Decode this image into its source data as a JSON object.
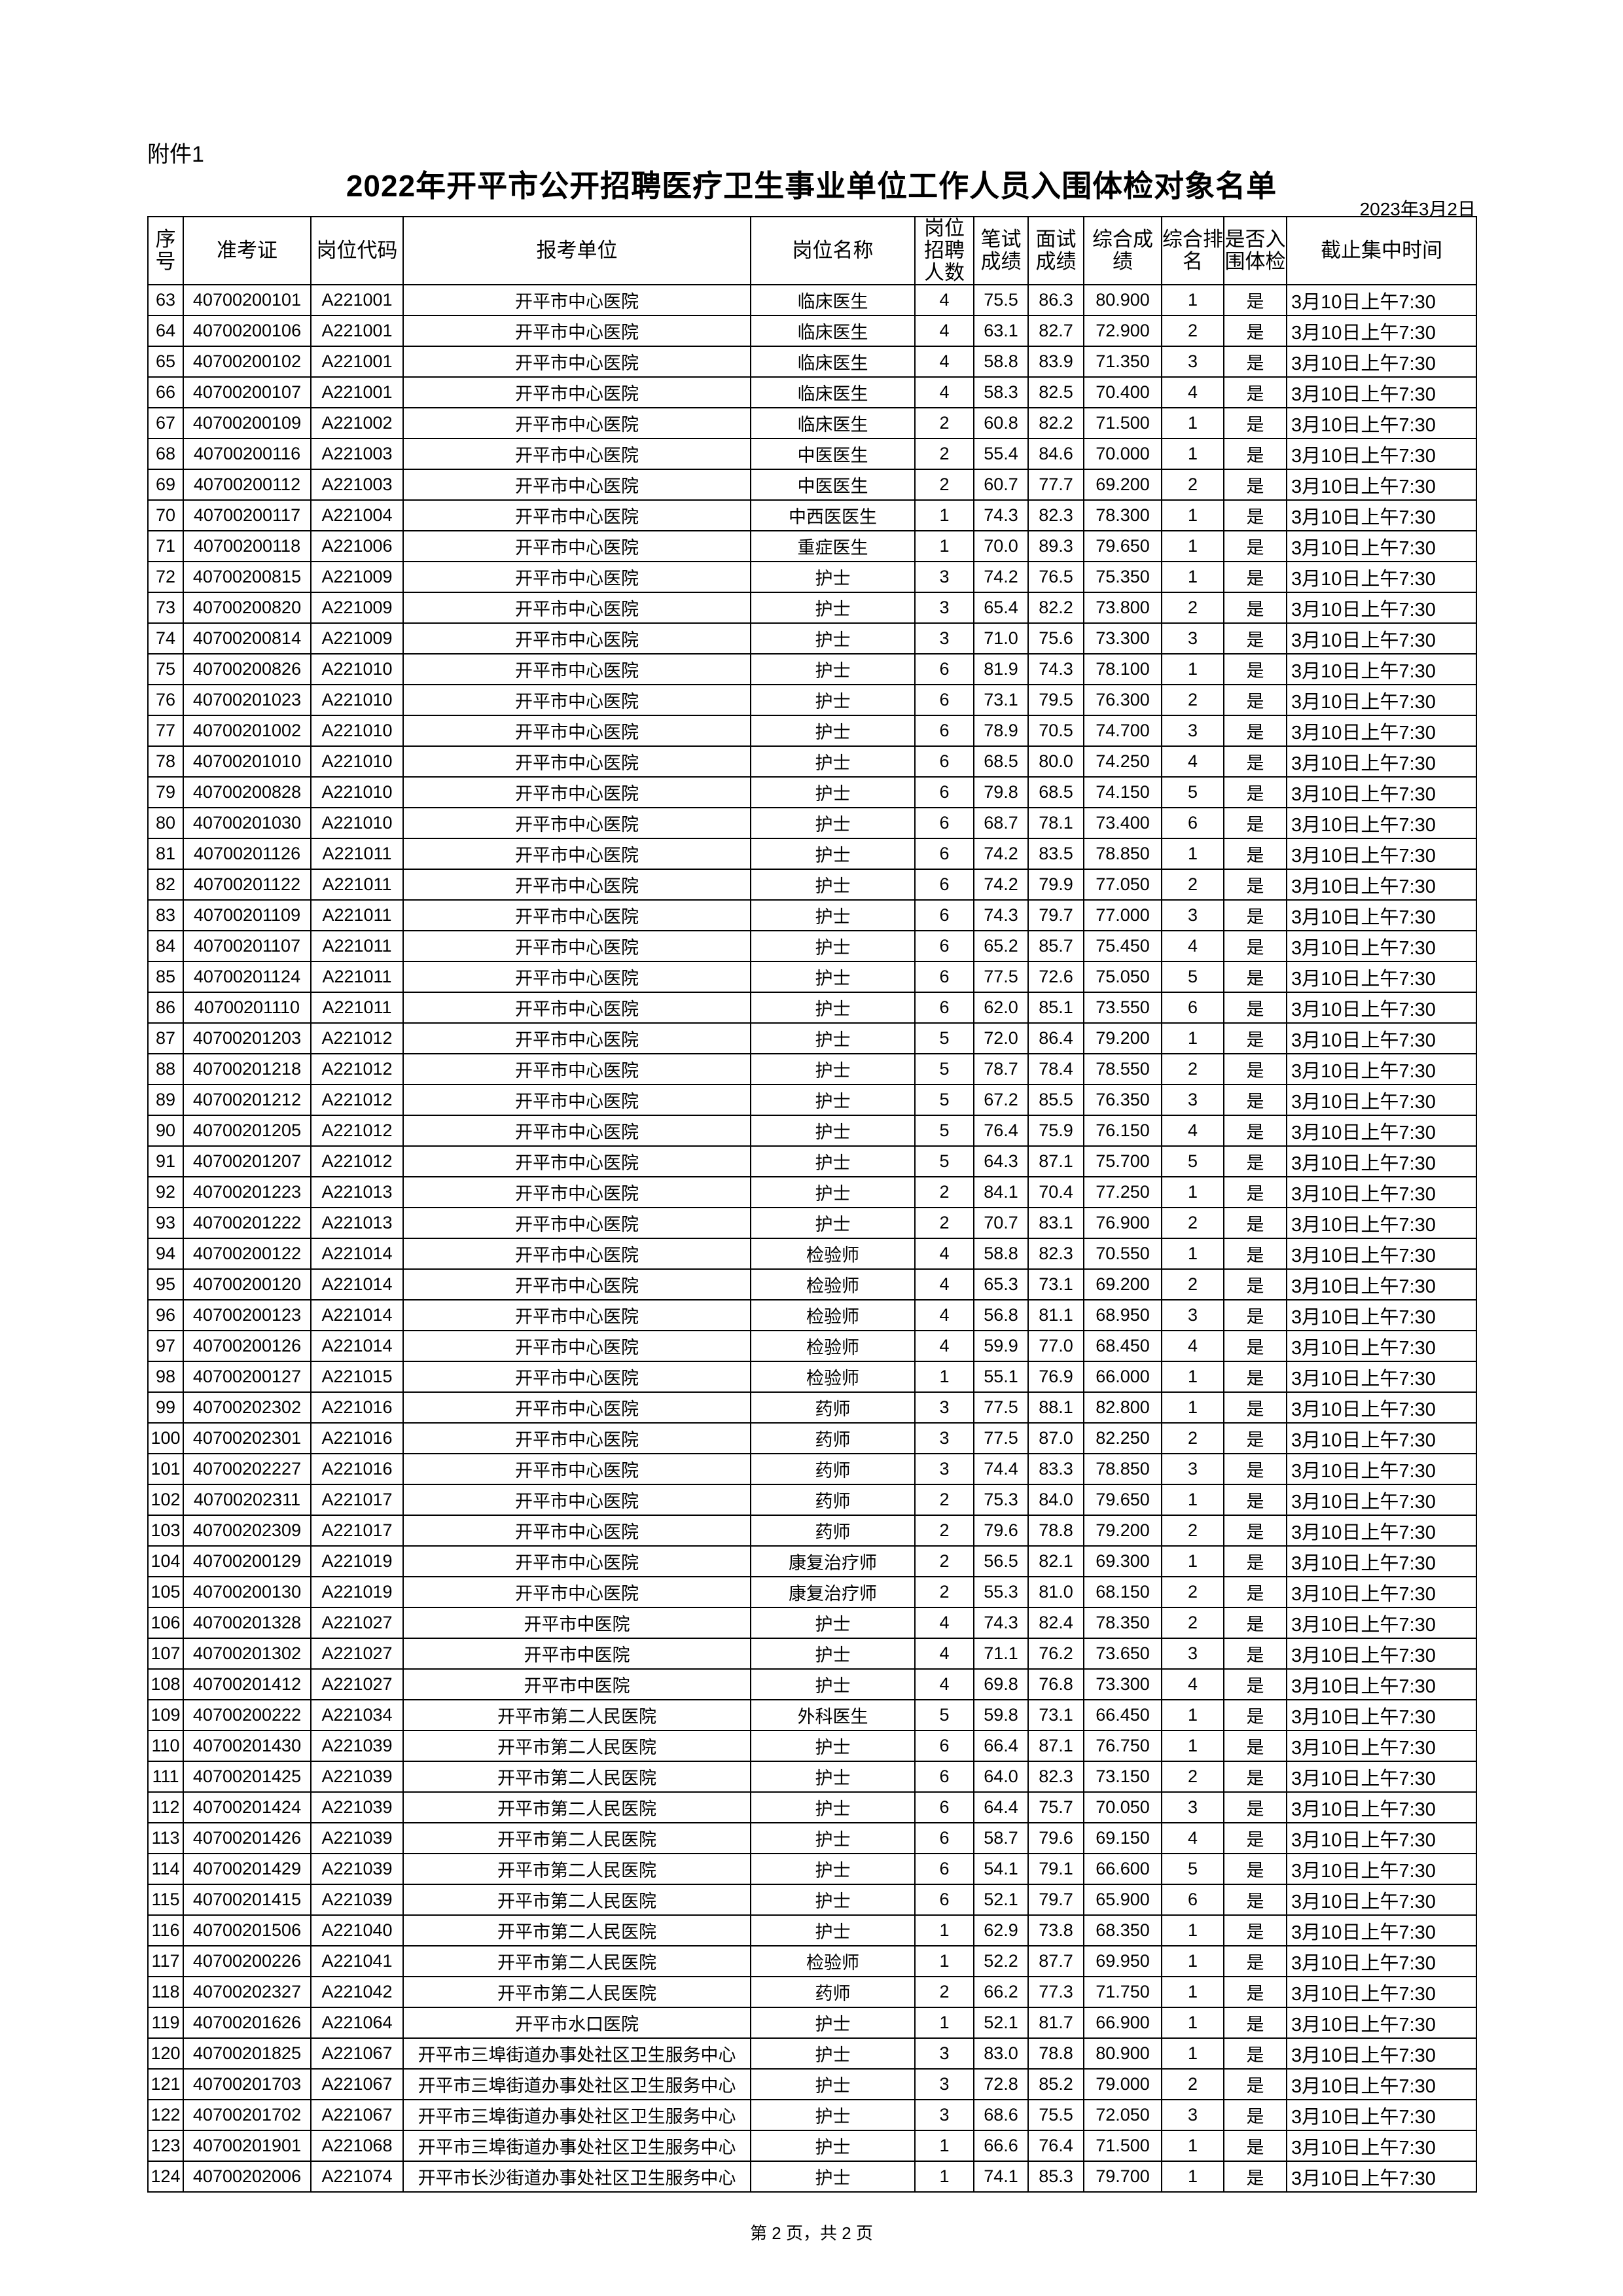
{
  "attachment_label": "附件1",
  "title": "2022年开平市公开招聘医疗卫生事业单位工作人员入围体检对象名单",
  "date": "2023年3月2日",
  "columns": [
    "序号",
    "准考证",
    "岗位代码",
    "报考单位",
    "岗位名称",
    "岗位招聘人数",
    "笔试成绩",
    "面试成绩",
    "综合成绩",
    "综合排名",
    "是否入围体检",
    "截止集中时间"
  ],
  "rows": [
    [
      "63",
      "40700200101",
      "A221001",
      "开平市中心医院",
      "临床医生",
      "4",
      "75.5",
      "86.3",
      "80.900",
      "1",
      "是",
      "3月10日上午7:30"
    ],
    [
      "64",
      "40700200106",
      "A221001",
      "开平市中心医院",
      "临床医生",
      "4",
      "63.1",
      "82.7",
      "72.900",
      "2",
      "是",
      "3月10日上午7:30"
    ],
    [
      "65",
      "40700200102",
      "A221001",
      "开平市中心医院",
      "临床医生",
      "4",
      "58.8",
      "83.9",
      "71.350",
      "3",
      "是",
      "3月10日上午7:30"
    ],
    [
      "66",
      "40700200107",
      "A221001",
      "开平市中心医院",
      "临床医生",
      "4",
      "58.3",
      "82.5",
      "70.400",
      "4",
      "是",
      "3月10日上午7:30"
    ],
    [
      "67",
      "40700200109",
      "A221002",
      "开平市中心医院",
      "临床医生",
      "2",
      "60.8",
      "82.2",
      "71.500",
      "1",
      "是",
      "3月10日上午7:30"
    ],
    [
      "68",
      "40700200116",
      "A221003",
      "开平市中心医院",
      "中医医生",
      "2",
      "55.4",
      "84.6",
      "70.000",
      "1",
      "是",
      "3月10日上午7:30"
    ],
    [
      "69",
      "40700200112",
      "A221003",
      "开平市中心医院",
      "中医医生",
      "2",
      "60.7",
      "77.7",
      "69.200",
      "2",
      "是",
      "3月10日上午7:30"
    ],
    [
      "70",
      "40700200117",
      "A221004",
      "开平市中心医院",
      "中西医医生",
      "1",
      "74.3",
      "82.3",
      "78.300",
      "1",
      "是",
      "3月10日上午7:30"
    ],
    [
      "71",
      "40700200118",
      "A221006",
      "开平市中心医院",
      "重症医生",
      "1",
      "70.0",
      "89.3",
      "79.650",
      "1",
      "是",
      "3月10日上午7:30"
    ],
    [
      "72",
      "40700200815",
      "A221009",
      "开平市中心医院",
      "护士",
      "3",
      "74.2",
      "76.5",
      "75.350",
      "1",
      "是",
      "3月10日上午7:30"
    ],
    [
      "73",
      "40700200820",
      "A221009",
      "开平市中心医院",
      "护士",
      "3",
      "65.4",
      "82.2",
      "73.800",
      "2",
      "是",
      "3月10日上午7:30"
    ],
    [
      "74",
      "40700200814",
      "A221009",
      "开平市中心医院",
      "护士",
      "3",
      "71.0",
      "75.6",
      "73.300",
      "3",
      "是",
      "3月10日上午7:30"
    ],
    [
      "75",
      "40700200826",
      "A221010",
      "开平市中心医院",
      "护士",
      "6",
      "81.9",
      "74.3",
      "78.100",
      "1",
      "是",
      "3月10日上午7:30"
    ],
    [
      "76",
      "40700201023",
      "A221010",
      "开平市中心医院",
      "护士",
      "6",
      "73.1",
      "79.5",
      "76.300",
      "2",
      "是",
      "3月10日上午7:30"
    ],
    [
      "77",
      "40700201002",
      "A221010",
      "开平市中心医院",
      "护士",
      "6",
      "78.9",
      "70.5",
      "74.700",
      "3",
      "是",
      "3月10日上午7:30"
    ],
    [
      "78",
      "40700201010",
      "A221010",
      "开平市中心医院",
      "护士",
      "6",
      "68.5",
      "80.0",
      "74.250",
      "4",
      "是",
      "3月10日上午7:30"
    ],
    [
      "79",
      "40700200828",
      "A221010",
      "开平市中心医院",
      "护士",
      "6",
      "79.8",
      "68.5",
      "74.150",
      "5",
      "是",
      "3月10日上午7:30"
    ],
    [
      "80",
      "40700201030",
      "A221010",
      "开平市中心医院",
      "护士",
      "6",
      "68.7",
      "78.1",
      "73.400",
      "6",
      "是",
      "3月10日上午7:30"
    ],
    [
      "81",
      "40700201126",
      "A221011",
      "开平市中心医院",
      "护士",
      "6",
      "74.2",
      "83.5",
      "78.850",
      "1",
      "是",
      "3月10日上午7:30"
    ],
    [
      "82",
      "40700201122",
      "A221011",
      "开平市中心医院",
      "护士",
      "6",
      "74.2",
      "79.9",
      "77.050",
      "2",
      "是",
      "3月10日上午7:30"
    ],
    [
      "83",
      "40700201109",
      "A221011",
      "开平市中心医院",
      "护士",
      "6",
      "74.3",
      "79.7",
      "77.000",
      "3",
      "是",
      "3月10日上午7:30"
    ],
    [
      "84",
      "40700201107",
      "A221011",
      "开平市中心医院",
      "护士",
      "6",
      "65.2",
      "85.7",
      "75.450",
      "4",
      "是",
      "3月10日上午7:30"
    ],
    [
      "85",
      "40700201124",
      "A221011",
      "开平市中心医院",
      "护士",
      "6",
      "77.5",
      "72.6",
      "75.050",
      "5",
      "是",
      "3月10日上午7:30"
    ],
    [
      "86",
      "40700201110",
      "A221011",
      "开平市中心医院",
      "护士",
      "6",
      "62.0",
      "85.1",
      "73.550",
      "6",
      "是",
      "3月10日上午7:30"
    ],
    [
      "87",
      "40700201203",
      "A221012",
      "开平市中心医院",
      "护士",
      "5",
      "72.0",
      "86.4",
      "79.200",
      "1",
      "是",
      "3月10日上午7:30"
    ],
    [
      "88",
      "40700201218",
      "A221012",
      "开平市中心医院",
      "护士",
      "5",
      "78.7",
      "78.4",
      "78.550",
      "2",
      "是",
      "3月10日上午7:30"
    ],
    [
      "89",
      "40700201212",
      "A221012",
      "开平市中心医院",
      "护士",
      "5",
      "67.2",
      "85.5",
      "76.350",
      "3",
      "是",
      "3月10日上午7:30"
    ],
    [
      "90",
      "40700201205",
      "A221012",
      "开平市中心医院",
      "护士",
      "5",
      "76.4",
      "75.9",
      "76.150",
      "4",
      "是",
      "3月10日上午7:30"
    ],
    [
      "91",
      "40700201207",
      "A221012",
      "开平市中心医院",
      "护士",
      "5",
      "64.3",
      "87.1",
      "75.700",
      "5",
      "是",
      "3月10日上午7:30"
    ],
    [
      "92",
      "40700201223",
      "A221013",
      "开平市中心医院",
      "护士",
      "2",
      "84.1",
      "70.4",
      "77.250",
      "1",
      "是",
      "3月10日上午7:30"
    ],
    [
      "93",
      "40700201222",
      "A221013",
      "开平市中心医院",
      "护士",
      "2",
      "70.7",
      "83.1",
      "76.900",
      "2",
      "是",
      "3月10日上午7:30"
    ],
    [
      "94",
      "40700200122",
      "A221014",
      "开平市中心医院",
      "检验师",
      "4",
      "58.8",
      "82.3",
      "70.550",
      "1",
      "是",
      "3月10日上午7:30"
    ],
    [
      "95",
      "40700200120",
      "A221014",
      "开平市中心医院",
      "检验师",
      "4",
      "65.3",
      "73.1",
      "69.200",
      "2",
      "是",
      "3月10日上午7:30"
    ],
    [
      "96",
      "40700200123",
      "A221014",
      "开平市中心医院",
      "检验师",
      "4",
      "56.8",
      "81.1",
      "68.950",
      "3",
      "是",
      "3月10日上午7:30"
    ],
    [
      "97",
      "40700200126",
      "A221014",
      "开平市中心医院",
      "检验师",
      "4",
      "59.9",
      "77.0",
      "68.450",
      "4",
      "是",
      "3月10日上午7:30"
    ],
    [
      "98",
      "40700200127",
      "A221015",
      "开平市中心医院",
      "检验师",
      "1",
      "55.1",
      "76.9",
      "66.000",
      "1",
      "是",
      "3月10日上午7:30"
    ],
    [
      "99",
      "40700202302",
      "A221016",
      "开平市中心医院",
      "药师",
      "3",
      "77.5",
      "88.1",
      "82.800",
      "1",
      "是",
      "3月10日上午7:30"
    ],
    [
      "100",
      "40700202301",
      "A221016",
      "开平市中心医院",
      "药师",
      "3",
      "77.5",
      "87.0",
      "82.250",
      "2",
      "是",
      "3月10日上午7:30"
    ],
    [
      "101",
      "40700202227",
      "A221016",
      "开平市中心医院",
      "药师",
      "3",
      "74.4",
      "83.3",
      "78.850",
      "3",
      "是",
      "3月10日上午7:30"
    ],
    [
      "102",
      "40700202311",
      "A221017",
      "开平市中心医院",
      "药师",
      "2",
      "75.3",
      "84.0",
      "79.650",
      "1",
      "是",
      "3月10日上午7:30"
    ],
    [
      "103",
      "40700202309",
      "A221017",
      "开平市中心医院",
      "药师",
      "2",
      "79.6",
      "78.8",
      "79.200",
      "2",
      "是",
      "3月10日上午7:30"
    ],
    [
      "104",
      "40700200129",
      "A221019",
      "开平市中心医院",
      "康复治疗师",
      "2",
      "56.5",
      "82.1",
      "69.300",
      "1",
      "是",
      "3月10日上午7:30"
    ],
    [
      "105",
      "40700200130",
      "A221019",
      "开平市中心医院",
      "康复治疗师",
      "2",
      "55.3",
      "81.0",
      "68.150",
      "2",
      "是",
      "3月10日上午7:30"
    ],
    [
      "106",
      "40700201328",
      "A221027",
      "开平市中医院",
      "护士",
      "4",
      "74.3",
      "82.4",
      "78.350",
      "2",
      "是",
      "3月10日上午7:30"
    ],
    [
      "107",
      "40700201302",
      "A221027",
      "开平市中医院",
      "护士",
      "4",
      "71.1",
      "76.2",
      "73.650",
      "3",
      "是",
      "3月10日上午7:30"
    ],
    [
      "108",
      "40700201412",
      "A221027",
      "开平市中医院",
      "护士",
      "4",
      "69.8",
      "76.8",
      "73.300",
      "4",
      "是",
      "3月10日上午7:30"
    ],
    [
      "109",
      "40700200222",
      "A221034",
      "开平市第二人民医院",
      "外科医生",
      "5",
      "59.8",
      "73.1",
      "66.450",
      "1",
      "是",
      "3月10日上午7:30"
    ],
    [
      "110",
      "40700201430",
      "A221039",
      "开平市第二人民医院",
      "护士",
      "6",
      "66.4",
      "87.1",
      "76.750",
      "1",
      "是",
      "3月10日上午7:30"
    ],
    [
      "111",
      "40700201425",
      "A221039",
      "开平市第二人民医院",
      "护士",
      "6",
      "64.0",
      "82.3",
      "73.150",
      "2",
      "是",
      "3月10日上午7:30"
    ],
    [
      "112",
      "40700201424",
      "A221039",
      "开平市第二人民医院",
      "护士",
      "6",
      "64.4",
      "75.7",
      "70.050",
      "3",
      "是",
      "3月10日上午7:30"
    ],
    [
      "113",
      "40700201426",
      "A221039",
      "开平市第二人民医院",
      "护士",
      "6",
      "58.7",
      "79.6",
      "69.150",
      "4",
      "是",
      "3月10日上午7:30"
    ],
    [
      "114",
      "40700201429",
      "A221039",
      "开平市第二人民医院",
      "护士",
      "6",
      "54.1",
      "79.1",
      "66.600",
      "5",
      "是",
      "3月10日上午7:30"
    ],
    [
      "115",
      "40700201415",
      "A221039",
      "开平市第二人民医院",
      "护士",
      "6",
      "52.1",
      "79.7",
      "65.900",
      "6",
      "是",
      "3月10日上午7:30"
    ],
    [
      "116",
      "40700201506",
      "A221040",
      "开平市第二人民医院",
      "护士",
      "1",
      "62.9",
      "73.8",
      "68.350",
      "1",
      "是",
      "3月10日上午7:30"
    ],
    [
      "117",
      "40700200226",
      "A221041",
      "开平市第二人民医院",
      "检验师",
      "1",
      "52.2",
      "87.7",
      "69.950",
      "1",
      "是",
      "3月10日上午7:30"
    ],
    [
      "118",
      "40700202327",
      "A221042",
      "开平市第二人民医院",
      "药师",
      "2",
      "66.2",
      "77.3",
      "71.750",
      "1",
      "是",
      "3月10日上午7:30"
    ],
    [
      "119",
      "40700201626",
      "A221064",
      "开平市水口医院",
      "护士",
      "1",
      "52.1",
      "81.7",
      "66.900",
      "1",
      "是",
      "3月10日上午7:30"
    ],
    [
      "120",
      "40700201825",
      "A221067",
      "开平市三埠街道办事处社区卫生服务中心",
      "护士",
      "3",
      "83.0",
      "78.8",
      "80.900",
      "1",
      "是",
      "3月10日上午7:30"
    ],
    [
      "121",
      "40700201703",
      "A221067",
      "开平市三埠街道办事处社区卫生服务中心",
      "护士",
      "3",
      "72.8",
      "85.2",
      "79.000",
      "2",
      "是",
      "3月10日上午7:30"
    ],
    [
      "122",
      "40700201702",
      "A221067",
      "开平市三埠街道办事处社区卫生服务中心",
      "护士",
      "3",
      "68.6",
      "75.5",
      "72.050",
      "3",
      "是",
      "3月10日上午7:30"
    ],
    [
      "123",
      "40700201901",
      "A221068",
      "开平市三埠街道办事处社区卫生服务中心",
      "护士",
      "1",
      "66.6",
      "76.4",
      "71.500",
      "1",
      "是",
      "3月10日上午7:30"
    ],
    [
      "124",
      "40700202006",
      "A221074",
      "开平市长沙街道办事处社区卫生服务中心",
      "护士",
      "1",
      "74.1",
      "85.3",
      "79.700",
      "1",
      "是",
      "3月10日上午7:30"
    ]
  ],
  "footer": "第 2 页，共 2 页"
}
